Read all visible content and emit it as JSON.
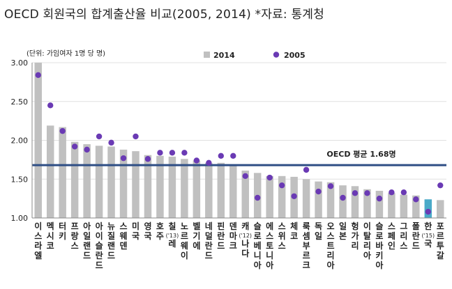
{
  "title": "OECD 회원국의 합계출산율 비교(2005, 2014) *자료: 통계청",
  "chart_data": {
    "type": "bar",
    "unit_label": "(단위: 가임여자 1명 당 명)",
    "ylim": [
      1.0,
      3.0
    ],
    "y_ticks": [
      "3.00",
      "2.50",
      "2.00",
      "1.50",
      "1.00"
    ],
    "legend": [
      {
        "label": "2014",
        "marker": "bar",
        "color": "#c0c0c0"
      },
      {
        "label": "2005",
        "marker": "dot",
        "color": "#6a3ab4"
      }
    ],
    "reference_line": {
      "value": 1.68,
      "label": "OECD 평균 1.68명",
      "color": "#2e4e85"
    },
    "categories": [
      "이스라엘",
      "멕시코",
      "터키",
      "프랑스",
      "아일랜드",
      "아이슬란드",
      "뉴질랜드",
      "스웨덴",
      "미국",
      "영국",
      "호주",
      "칠레",
      "노르웨이",
      "벨기에",
      "네덜란드",
      "핀란드",
      "덴마크",
      "캐나다",
      "슬로베니아",
      "에스토니아",
      "스위스",
      "체코",
      "룩셈부르크",
      "독일",
      "오스트리아",
      "일본",
      "헝가리",
      "이탈리아",
      "슬로바키아",
      "스페인",
      "그리스",
      "폴란드",
      "한국",
      "포르투갈"
    ],
    "category_notes": [
      "",
      "",
      "",
      "",
      "",
      "",
      "",
      "",
      "",
      "",
      "",
      "('13)",
      "",
      "",
      "",
      "",
      "",
      "('12)",
      "",
      "",
      "",
      "",
      "",
      "",
      "",
      "",
      "",
      "",
      "",
      "",
      "",
      "",
      "('15)",
      ""
    ],
    "series": [
      {
        "name": "2014",
        "values": [
          3.0,
          2.19,
          2.17,
          1.98,
          1.95,
          1.93,
          1.92,
          1.88,
          1.86,
          1.81,
          1.8,
          1.79,
          1.76,
          1.74,
          1.71,
          1.71,
          1.69,
          1.61,
          1.58,
          1.54,
          1.54,
          1.53,
          1.5,
          1.47,
          1.46,
          1.42,
          1.41,
          1.37,
          1.35,
          1.32,
          1.3,
          1.29,
          1.24,
          1.23
        ]
      },
      {
        "name": "2005",
        "values": [
          2.84,
          2.45,
          2.12,
          1.92,
          1.88,
          2.05,
          1.97,
          1.77,
          2.05,
          1.76,
          1.84,
          1.84,
          1.84,
          1.74,
          1.71,
          1.8,
          1.8,
          1.54,
          1.26,
          1.52,
          1.42,
          1.28,
          1.62,
          1.34,
          1.41,
          1.26,
          1.32,
          1.32,
          1.25,
          1.33,
          1.33,
          1.24,
          1.08,
          1.42
        ]
      }
    ],
    "highlight": {
      "category": "한국",
      "color": "#4aaac8"
    }
  }
}
